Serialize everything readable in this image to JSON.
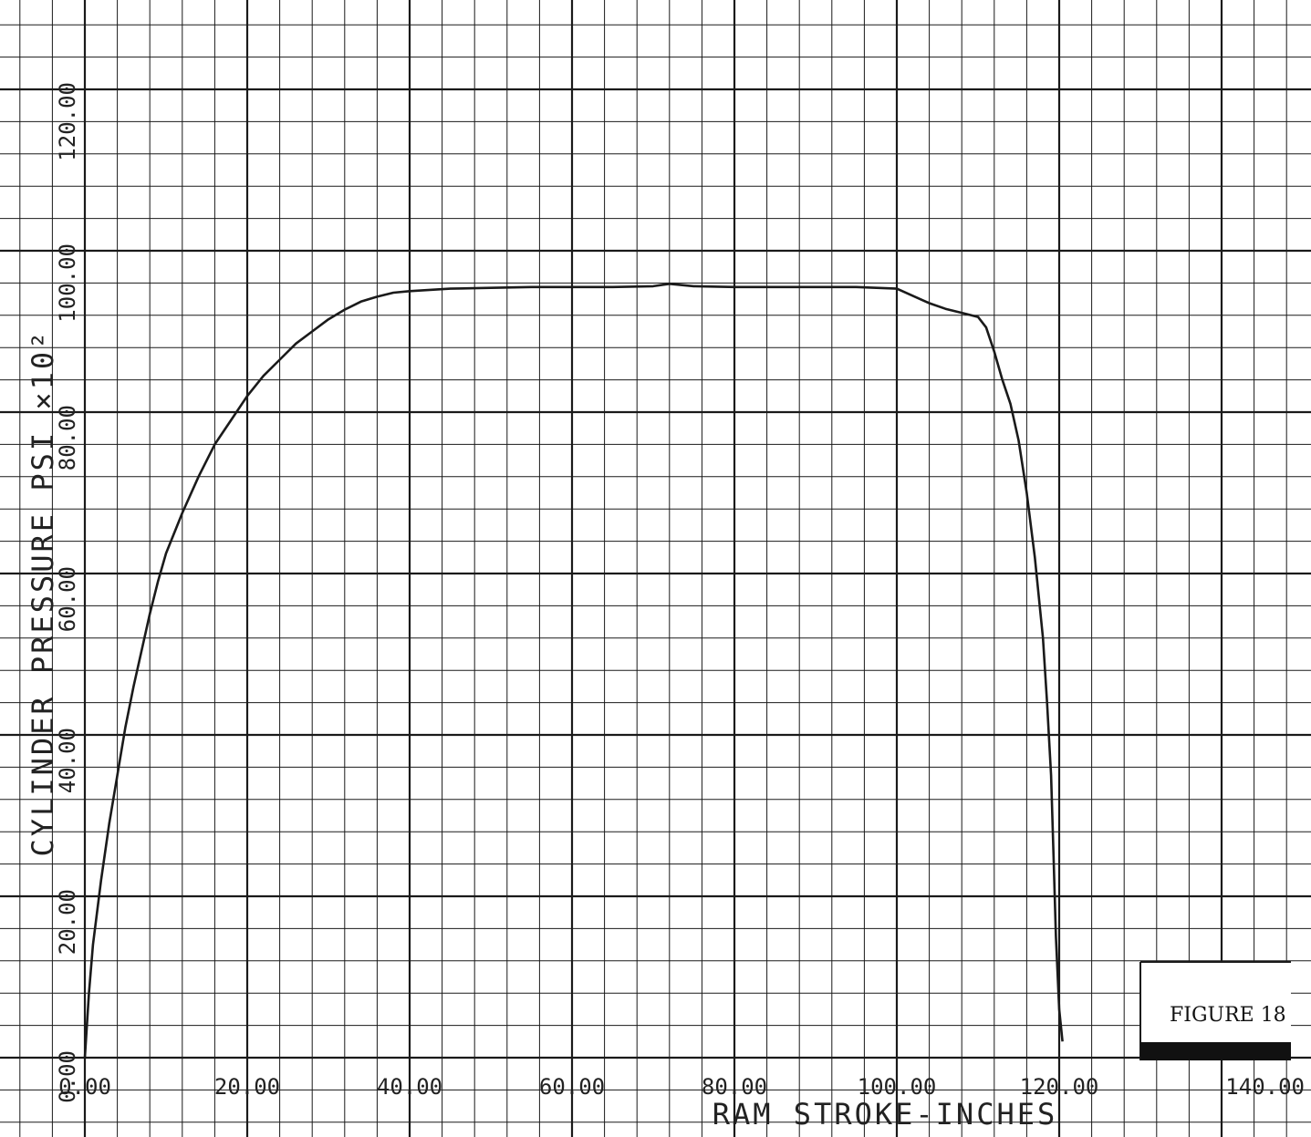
{
  "chart_data": {
    "type": "line",
    "title": "",
    "xlabel": "RAM STROKE-INCHES",
    "ylabel": "CYLINDER PRESSURE PSI ×10²",
    "xlim": [
      0,
      140
    ],
    "ylim": [
      0,
      120
    ],
    "x_ticks": [
      "0.00",
      "20.00",
      "40.00",
      "60.00",
      "80.00",
      "100.00",
      "120.00",
      "140.00"
    ],
    "y_ticks": [
      "0.00",
      "20.00",
      "40.00",
      "60.00",
      "80.00",
      "100.00",
      "120.00"
    ],
    "grid": true,
    "series": [
      {
        "x": [
          0,
          0.5,
          1,
          2,
          3,
          4,
          5,
          6,
          7,
          8,
          9,
          10,
          12,
          14,
          16,
          18,
          20,
          22,
          24,
          26,
          28,
          30,
          32,
          34,
          36,
          38,
          40,
          45,
          50,
          55,
          60,
          65,
          70,
          72,
          75,
          80,
          85,
          90,
          95,
          100,
          102,
          104,
          106,
          108,
          110,
          111,
          112,
          113,
          114,
          115,
          116,
          117,
          118,
          118.5,
          119,
          119.3,
          119.6,
          120,
          120.4
        ],
        "y": [
          0,
          8,
          14,
          22,
          29,
          35,
          41,
          46,
          50.5,
          55,
          59,
          62.5,
          67.5,
          72,
          76,
          79,
          82,
          84.5,
          86.5,
          88.5,
          90,
          91.5,
          92.7,
          93.7,
          94.3,
          94.8,
          95,
          95.3,
          95.4,
          95.5,
          95.5,
          95.5,
          95.6,
          95.9,
          95.6,
          95.5,
          95.5,
          95.5,
          95.5,
          95.3,
          94.4,
          93.5,
          92.8,
          92.3,
          91.8,
          90.5,
          87.5,
          84,
          81,
          76.5,
          70,
          62,
          52,
          44,
          35,
          25,
          15,
          6,
          2
        ]
      }
    ]
  },
  "figure_label": "FIGURE 18"
}
